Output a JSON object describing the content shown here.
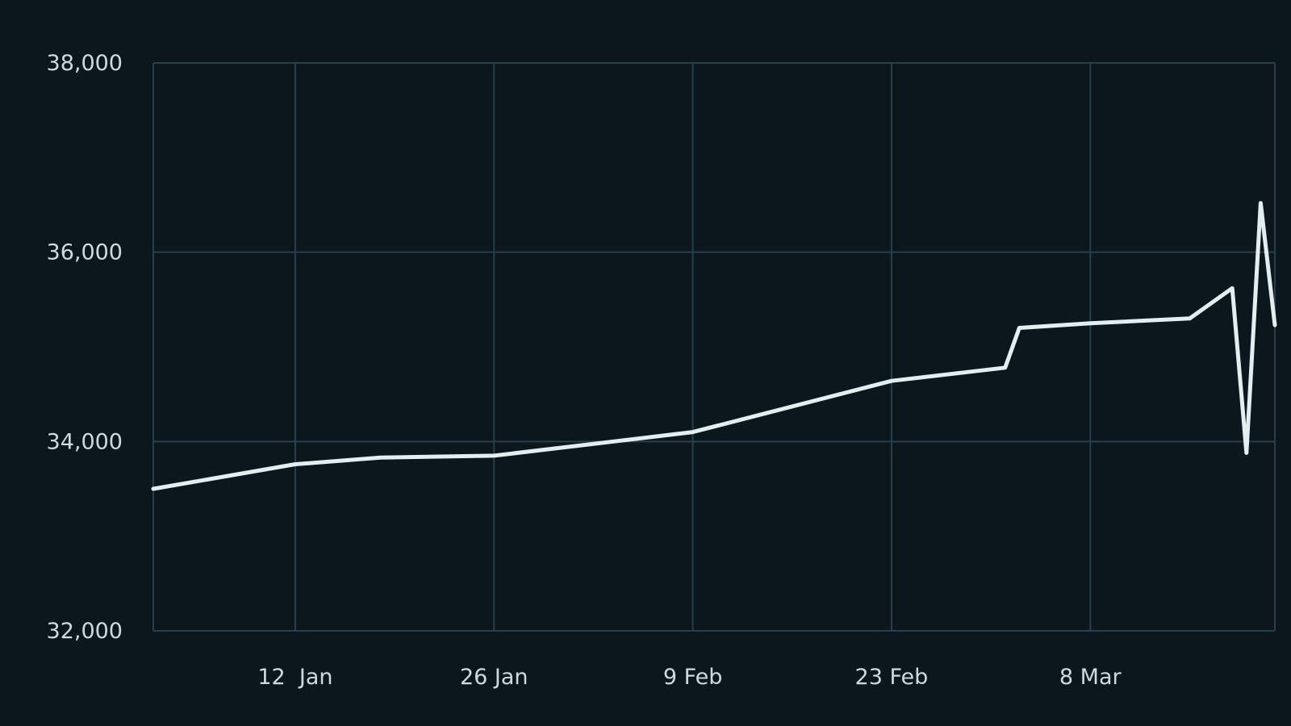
{
  "chart_data": {
    "type": "line",
    "title": "",
    "xlabel": "",
    "ylabel": "",
    "grid": true,
    "legend": "none",
    "colors": {
      "background": "#0b171d",
      "grid": "#27404a",
      "line": "#e4eef1",
      "text": "#cfd9de"
    },
    "xlim": [
      "2024-01-02",
      "2024-03-21"
    ],
    "ylim": [
      32000,
      38000
    ],
    "y_ticks": [
      {
        "value": 32000,
        "label": "32,000"
      },
      {
        "value": 34000,
        "label": "34,000"
      },
      {
        "value": 36000,
        "label": "36,000"
      },
      {
        "value": 38000,
        "label": "38,000"
      }
    ],
    "x_ticks": [
      {
        "date": "2024-01-12",
        "label": "12  Jan"
      },
      {
        "date": "2024-01-26",
        "label": "26 Jan"
      },
      {
        "date": "2024-02-09",
        "label": "9 Feb"
      },
      {
        "date": "2024-02-23",
        "label": "23 Feb"
      },
      {
        "date": "2024-03-08",
        "label": "8 Mar"
      }
    ],
    "series": [
      {
        "points": [
          {
            "x": "2024-01-02",
            "y": 33500
          },
          {
            "x": "2024-01-12",
            "y": 33760
          },
          {
            "x": "2024-01-18",
            "y": 33830
          },
          {
            "x": "2024-01-26",
            "y": 33850
          },
          {
            "x": "2024-02-09",
            "y": 34100
          },
          {
            "x": "2024-02-23",
            "y": 34640
          },
          {
            "x": "2024-03-02",
            "y": 34780
          },
          {
            "x": "2024-03-03",
            "y": 35200
          },
          {
            "x": "2024-03-08",
            "y": 35250
          },
          {
            "x": "2024-03-15",
            "y": 35300
          },
          {
            "x": "2024-03-18",
            "y": 35620
          },
          {
            "x": "2024-03-19",
            "y": 33880
          },
          {
            "x": "2024-03-20",
            "y": 36520
          },
          {
            "x": "2024-03-21",
            "y": 35230
          }
        ]
      }
    ]
  }
}
